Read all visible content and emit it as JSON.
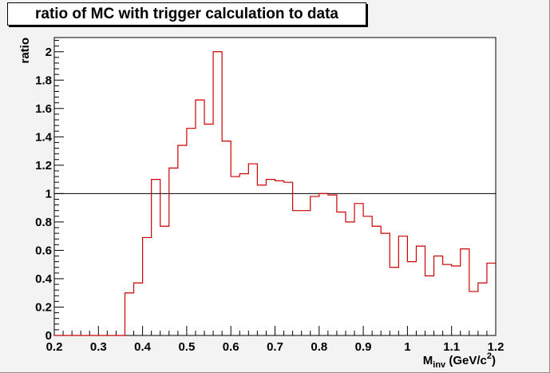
{
  "chart_data": {
    "type": "histogram",
    "title": "ratio of MC with trigger calculation to data",
    "xlabel_main": "M",
    "xlabel_sub": "inv",
    "xlabel_unit": " (GeV/c",
    "xlabel_sup": "2",
    "xlabel_close": ")",
    "ylabel": "ratio",
    "xlim": [
      0.2,
      1.2
    ],
    "ylim": [
      0,
      2.1
    ],
    "x_ticks": [
      "0.2",
      "0.3",
      "0.4",
      "0.5",
      "0.6",
      "0.7",
      "0.8",
      "0.9",
      "1",
      "1.1",
      "1.2"
    ],
    "y_ticks": [
      "0",
      "0.2",
      "0.4",
      "0.6",
      "0.8",
      "1",
      "1.2",
      "1.4",
      "1.6",
      "1.8",
      "2"
    ],
    "reference_line_y": 1.0,
    "line_color": "#cc0000",
    "bin_width": 0.02,
    "bins_start": 0.2,
    "values": [
      0,
      0,
      0,
      0,
      0,
      0,
      0,
      0,
      0.3,
      0.37,
      0.69,
      1.1,
      0.77,
      1.18,
      1.34,
      1.46,
      1.66,
      1.49,
      2.0,
      1.37,
      1.12,
      1.14,
      1.21,
      1.06,
      1.1,
      1.09,
      1.08,
      0.88,
      0.88,
      0.98,
      1.0,
      0.99,
      0.87,
      0.8,
      0.93,
      0.84,
      0.77,
      0.72,
      0.48,
      0.7,
      0.52,
      0.63,
      0.42,
      0.56,
      0.5,
      0.49,
      0.61,
      0.31,
      0.37,
      0.51
    ]
  }
}
